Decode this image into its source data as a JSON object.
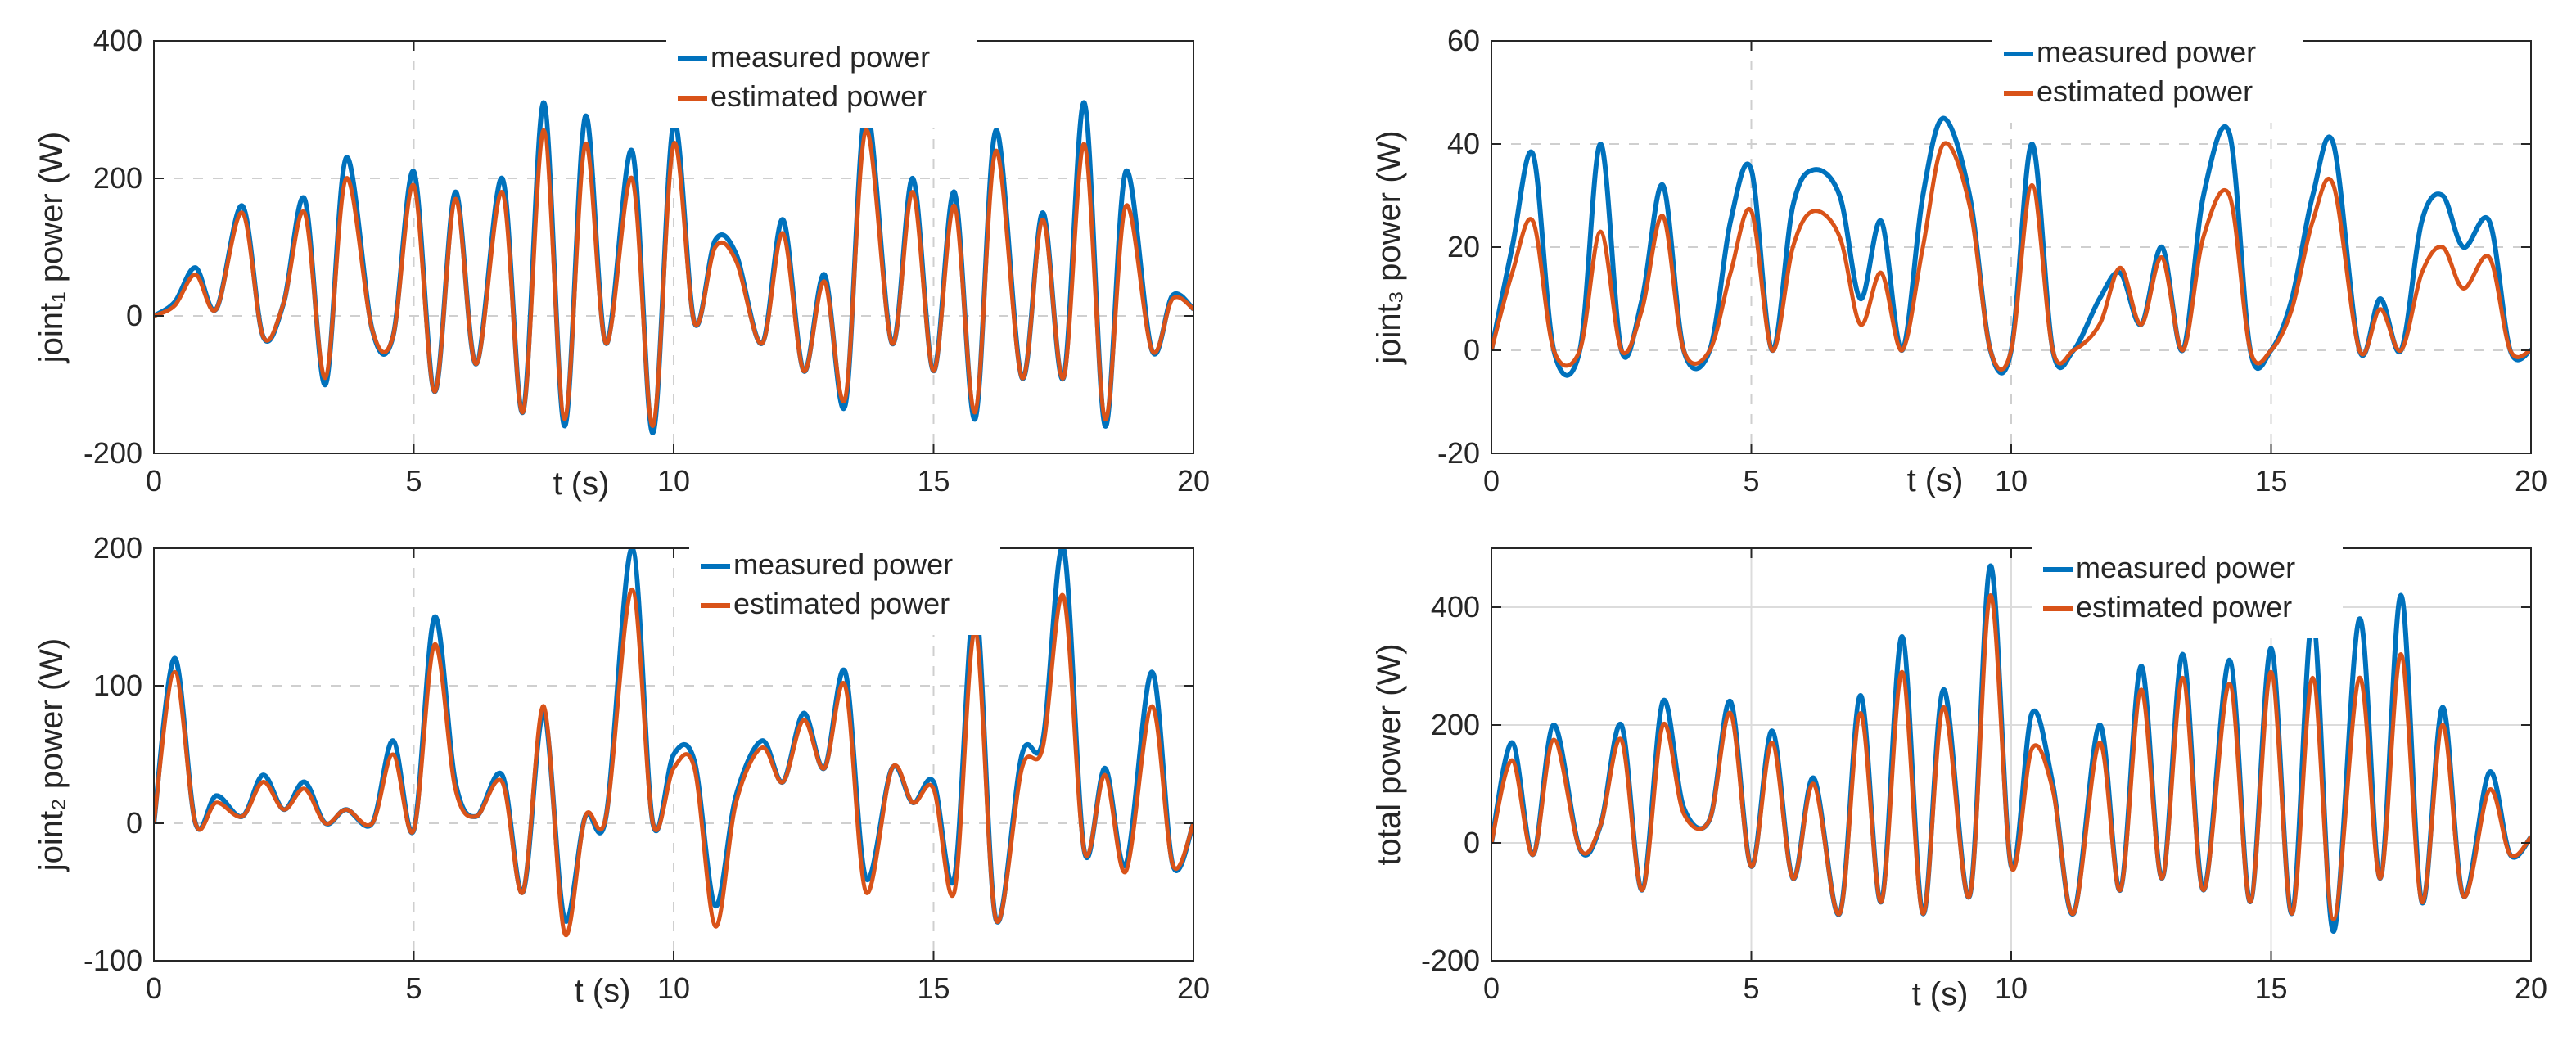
{
  "chart_data": [
    {
      "type": "line",
      "ylabel": "joint₁ power (W)",
      "xlabel": "t (s)",
      "xlim": [
        0,
        20
      ],
      "ylim": [
        -200,
        400
      ],
      "xticks": [
        "0",
        "5",
        "10",
        "15",
        "20"
      ],
      "yticks": [
        "-200",
        "0",
        "200",
        "400"
      ],
      "grid": "dashed",
      "legend_location": "top-center",
      "series": [
        {
          "name": "measured power",
          "color": "#0072BD",
          "x": [
            0.0,
            0.4,
            0.8,
            1.2,
            1.7,
            2.1,
            2.5,
            2.9,
            3.3,
            3.7,
            4.2,
            4.6,
            5.0,
            5.4,
            5.8,
            6.2,
            6.7,
            7.1,
            7.5,
            7.9,
            8.3,
            8.7,
            9.2,
            9.6,
            10.0,
            10.4,
            10.8,
            11.2,
            11.7,
            12.1,
            12.5,
            12.9,
            13.3,
            13.7,
            14.2,
            14.6,
            15.0,
            15.4,
            15.8,
            16.2,
            16.7,
            17.1,
            17.5,
            17.9,
            18.3,
            18.7,
            19.2,
            19.6,
            20.0
          ],
          "values": [
            0,
            20,
            70,
            10,
            160,
            -30,
            20,
            170,
            -100,
            230,
            -20,
            -30,
            210,
            -110,
            180,
            -70,
            200,
            -140,
            310,
            -160,
            290,
            -40,
            240,
            -170,
            280,
            -10,
            110,
            90,
            -40,
            140,
            -80,
            60,
            -130,
            300,
            -40,
            200,
            -80,
            180,
            -150,
            270,
            -90,
            150,
            -90,
            310,
            -160,
            210,
            -50,
            30,
            10
          ]
        },
        {
          "name": "estimated power",
          "color": "#D95319",
          "x": [
            0.0,
            0.4,
            0.8,
            1.2,
            1.7,
            2.1,
            2.5,
            2.9,
            3.3,
            3.7,
            4.2,
            4.6,
            5.0,
            5.4,
            5.8,
            6.2,
            6.7,
            7.1,
            7.5,
            7.9,
            8.3,
            8.7,
            9.2,
            9.6,
            10.0,
            10.4,
            10.8,
            11.2,
            11.7,
            12.1,
            12.5,
            12.9,
            13.3,
            13.7,
            14.2,
            14.6,
            15.0,
            15.4,
            15.8,
            16.2,
            16.7,
            17.1,
            17.5,
            17.9,
            18.3,
            18.7,
            19.2,
            19.6,
            20.0
          ],
          "values": [
            0,
            15,
            60,
            10,
            150,
            -30,
            20,
            150,
            -90,
            200,
            -20,
            -30,
            190,
            -110,
            170,
            -70,
            180,
            -140,
            270,
            -150,
            250,
            -40,
            200,
            -160,
            250,
            -10,
            100,
            80,
            -40,
            120,
            -80,
            50,
            -120,
            270,
            -40,
            180,
            -80,
            160,
            -140,
            240,
            -90,
            140,
            -90,
            250,
            -150,
            160,
            -50,
            25,
            10
          ]
        }
      ]
    },
    {
      "type": "line",
      "ylabel": "joint₃ power (W)",
      "xlabel": "t (s)",
      "xlim": [
        0,
        20
      ],
      "ylim": [
        -20,
        60
      ],
      "xticks": [
        "0",
        "5",
        "10",
        "15",
        "20"
      ],
      "yticks": [
        "-20",
        "0",
        "20",
        "40",
        "60"
      ],
      "grid": "dashed",
      "legend_location": "top-center",
      "series": [
        {
          "name": "measured power",
          "color": "#0072BD",
          "x": [
            0.0,
            0.4,
            0.8,
            1.2,
            1.7,
            2.1,
            2.5,
            2.9,
            3.3,
            3.7,
            4.2,
            4.6,
            5.0,
            5.4,
            5.8,
            6.2,
            6.7,
            7.1,
            7.5,
            7.9,
            8.3,
            8.7,
            9.2,
            9.6,
            10.0,
            10.4,
            10.8,
            11.2,
            11.7,
            12.1,
            12.5,
            12.9,
            13.3,
            13.7,
            14.2,
            14.6,
            15.0,
            15.4,
            15.8,
            16.2,
            16.7,
            17.1,
            17.5,
            17.9,
            18.3,
            18.7,
            19.2,
            19.6,
            20.0
          ],
          "values": [
            0,
            20,
            38,
            0,
            0,
            40,
            0,
            10,
            32,
            0,
            0,
            25,
            35,
            0,
            28,
            35,
            30,
            10,
            25,
            0,
            30,
            45,
            30,
            0,
            0,
            40,
            0,
            0,
            10,
            15,
            5,
            20,
            0,
            30,
            42,
            0,
            0,
            10,
            30,
            40,
            0,
            10,
            0,
            25,
            30,
            20,
            25,
            0,
            0
          ]
        },
        {
          "name": "estimated power",
          "color": "#D95319",
          "x": [
            0.0,
            0.4,
            0.8,
            1.2,
            1.7,
            2.1,
            2.5,
            2.9,
            3.3,
            3.7,
            4.2,
            4.6,
            5.0,
            5.4,
            5.8,
            6.2,
            6.7,
            7.1,
            7.5,
            7.9,
            8.3,
            8.7,
            9.2,
            9.6,
            10.0,
            10.4,
            10.8,
            11.2,
            11.7,
            12.1,
            12.5,
            12.9,
            13.3,
            13.7,
            14.2,
            14.6,
            15.0,
            15.4,
            15.8,
            16.2,
            16.7,
            17.1,
            17.5,
            17.9,
            18.3,
            18.7,
            19.2,
            19.6,
            20.0
          ],
          "values": [
            0,
            15,
            25,
            0,
            0,
            23,
            0,
            8,
            26,
            0,
            0,
            15,
            27,
            0,
            20,
            27,
            22,
            5,
            15,
            0,
            20,
            40,
            28,
            0,
            0,
            32,
            0,
            0,
            5,
            16,
            5,
            18,
            0,
            22,
            30,
            0,
            0,
            8,
            25,
            32,
            0,
            8,
            0,
            15,
            20,
            12,
            18,
            0,
            0
          ]
        }
      ]
    },
    {
      "type": "line",
      "ylabel": "joint₂ power (W)",
      "xlabel": "t (s)",
      "xlim": [
        0,
        20
      ],
      "ylim": [
        -100,
        200
      ],
      "xticks": [
        "0",
        "5",
        "10",
        "15",
        "20"
      ],
      "yticks": [
        "-100",
        "0",
        "100",
        "200"
      ],
      "grid": "dashed",
      "legend_location": "top-center",
      "series": [
        {
          "name": "measured power",
          "color": "#0072BD",
          "x": [
            0.0,
            0.4,
            0.8,
            1.2,
            1.7,
            2.1,
            2.5,
            2.9,
            3.3,
            3.7,
            4.2,
            4.6,
            5.0,
            5.4,
            5.8,
            6.2,
            6.7,
            7.1,
            7.5,
            7.9,
            8.3,
            8.7,
            9.2,
            9.6,
            10.0,
            10.4,
            10.8,
            11.2,
            11.7,
            12.1,
            12.5,
            12.9,
            13.3,
            13.7,
            14.2,
            14.6,
            15.0,
            15.4,
            15.8,
            16.2,
            16.7,
            17.1,
            17.5,
            17.9,
            18.3,
            18.7,
            19.2,
            19.6,
            20.0
          ],
          "values": [
            0,
            120,
            0,
            20,
            5,
            35,
            10,
            30,
            0,
            10,
            0,
            60,
            -5,
            150,
            30,
            5,
            35,
            -50,
            80,
            -70,
            5,
            5,
            200,
            0,
            50,
            45,
            -60,
            20,
            60,
            30,
            80,
            40,
            110,
            -40,
            40,
            15,
            30,
            -40,
            160,
            -70,
            50,
            60,
            200,
            -20,
            40,
            -30,
            110,
            -30,
            0
          ]
        },
        {
          "name": "estimated power",
          "color": "#D95319",
          "x": [
            0.0,
            0.4,
            0.8,
            1.2,
            1.7,
            2.1,
            2.5,
            2.9,
            3.3,
            3.7,
            4.2,
            4.6,
            5.0,
            5.4,
            5.8,
            6.2,
            6.7,
            7.1,
            7.5,
            7.9,
            8.3,
            8.7,
            9.2,
            9.6,
            10.0,
            10.4,
            10.8,
            11.2,
            11.7,
            12.1,
            12.5,
            12.9,
            13.3,
            13.7,
            14.2,
            14.6,
            15.0,
            15.4,
            15.8,
            16.2,
            16.7,
            17.1,
            17.5,
            17.9,
            18.3,
            18.7,
            19.2,
            19.6,
            20.0
          ],
          "values": [
            0,
            110,
            0,
            15,
            5,
            30,
            10,
            25,
            0,
            10,
            0,
            50,
            -5,
            130,
            25,
            5,
            30,
            -50,
            85,
            -80,
            5,
            5,
            170,
            0,
            40,
            40,
            -75,
            15,
            55,
            30,
            75,
            40,
            100,
            -50,
            40,
            15,
            25,
            -50,
            140,
            -70,
            40,
            55,
            165,
            -20,
            35,
            -35,
            85,
            -30,
            0
          ]
        }
      ]
    },
    {
      "type": "line",
      "ylabel": "total power (W)",
      "xlabel": "t (s)",
      "xlim": [
        0,
        20
      ],
      "ylim": [
        -200,
        500
      ],
      "xticks": [
        "0",
        "5",
        "10",
        "15",
        "20"
      ],
      "yticks": [
        "-200",
        "0",
        "200",
        "400"
      ],
      "grid": "solid",
      "legend_location": "top-center",
      "series": [
        {
          "name": "measured power",
          "color": "#0072BD",
          "x": [
            0.0,
            0.4,
            0.8,
            1.2,
            1.7,
            2.1,
            2.5,
            2.9,
            3.3,
            3.7,
            4.2,
            4.6,
            5.0,
            5.4,
            5.8,
            6.2,
            6.7,
            7.1,
            7.5,
            7.9,
            8.3,
            8.7,
            9.2,
            9.6,
            10.0,
            10.4,
            10.8,
            11.2,
            11.7,
            12.1,
            12.5,
            12.9,
            13.3,
            13.7,
            14.2,
            14.6,
            15.0,
            15.4,
            15.8,
            16.2,
            16.7,
            17.1,
            17.5,
            17.9,
            18.3,
            18.7,
            19.2,
            19.6,
            20.0
          ],
          "values": [
            0,
            170,
            -20,
            200,
            -10,
            30,
            200,
            -80,
            240,
            60,
            40,
            240,
            -40,
            190,
            -60,
            110,
            -120,
            250,
            -100,
            350,
            -120,
            260,
            -90,
            470,
            -40,
            220,
            100,
            -120,
            200,
            -80,
            300,
            -60,
            320,
            -80,
            310,
            -100,
            330,
            -120,
            380,
            -150,
            380,
            -60,
            420,
            -100,
            230,
            -90,
            120,
            -20,
            10
          ]
        },
        {
          "name": "estimated power",
          "color": "#D95319",
          "x": [
            0.0,
            0.4,
            0.8,
            1.2,
            1.7,
            2.1,
            2.5,
            2.9,
            3.3,
            3.7,
            4.2,
            4.6,
            5.0,
            5.4,
            5.8,
            6.2,
            6.7,
            7.1,
            7.5,
            7.9,
            8.3,
            8.7,
            9.2,
            9.6,
            10.0,
            10.4,
            10.8,
            11.2,
            11.7,
            12.1,
            12.5,
            12.9,
            13.3,
            13.7,
            14.2,
            14.6,
            15.0,
            15.4,
            15.8,
            16.2,
            16.7,
            17.1,
            17.5,
            17.9,
            18.3,
            18.7,
            19.2,
            19.6,
            20.0
          ],
          "values": [
            0,
            140,
            -20,
            175,
            -10,
            30,
            175,
            -80,
            200,
            50,
            40,
            220,
            -40,
            170,
            -60,
            100,
            -120,
            220,
            -100,
            290,
            -120,
            230,
            -90,
            420,
            -40,
            160,
            90,
            -120,
            170,
            -80,
            260,
            -60,
            280,
            -80,
            270,
            -100,
            290,
            -120,
            280,
            -130,
            280,
            -60,
            320,
            -100,
            200,
            -90,
            90,
            -20,
            10
          ]
        }
      ]
    }
  ]
}
